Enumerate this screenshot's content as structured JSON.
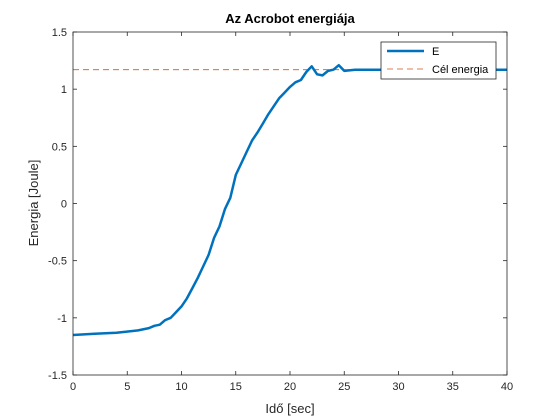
{
  "chart_data": {
    "type": "line",
    "title": "Az Acrobot energiája",
    "xlabel": "Idő [sec]",
    "ylabel": "Energia [Joule]",
    "xlim": [
      0,
      40
    ],
    "ylim": [
      -1.5,
      1.5
    ],
    "xticks": [
      0,
      5,
      10,
      15,
      20,
      25,
      30,
      35,
      40
    ],
    "yticks": [
      -1.5,
      -1,
      -0.5,
      0,
      0.5,
      1,
      1.5
    ],
    "xtick_labels": [
      "0",
      "5",
      "10",
      "15",
      "20",
      "25",
      "30",
      "35",
      "40"
    ],
    "ytick_labels": [
      "-1.5",
      "-1",
      "-0.5",
      "0",
      "0.5",
      "1",
      "1.5"
    ],
    "grid": false,
    "legend_position": "top-right",
    "series": [
      {
        "name": "E",
        "color": "#0072BD",
        "style": "solid",
        "x": [
          0,
          2,
          4,
          6,
          7,
          7.5,
          8,
          8.5,
          9,
          9.5,
          10,
          10.5,
          11,
          11.5,
          12,
          12.5,
          13,
          13.5,
          14,
          14.5,
          15,
          15.5,
          16,
          16.5,
          17,
          17.5,
          18,
          18.5,
          19,
          19.5,
          20,
          20.5,
          21,
          21.5,
          22,
          22.5,
          23,
          23.5,
          24,
          24.5,
          25,
          26,
          30,
          35,
          40
        ],
        "y": [
          -1.15,
          -1.14,
          -1.13,
          -1.11,
          -1.09,
          -1.07,
          -1.06,
          -1.02,
          -1.0,
          -0.95,
          -0.9,
          -0.83,
          -0.74,
          -0.65,
          -0.55,
          -0.45,
          -0.3,
          -0.2,
          -0.05,
          0.05,
          0.25,
          0.35,
          0.45,
          0.55,
          0.62,
          0.7,
          0.78,
          0.85,
          0.92,
          0.97,
          1.02,
          1.06,
          1.08,
          1.15,
          1.2,
          1.13,
          1.12,
          1.16,
          1.17,
          1.21,
          1.16,
          1.17,
          1.17,
          1.17,
          1.17
        ]
      },
      {
        "name": "Cél energia",
        "color": "#D95319",
        "style": "dashed",
        "x": [
          0,
          40
        ],
        "y": [
          1.17,
          1.17
        ]
      }
    ]
  }
}
